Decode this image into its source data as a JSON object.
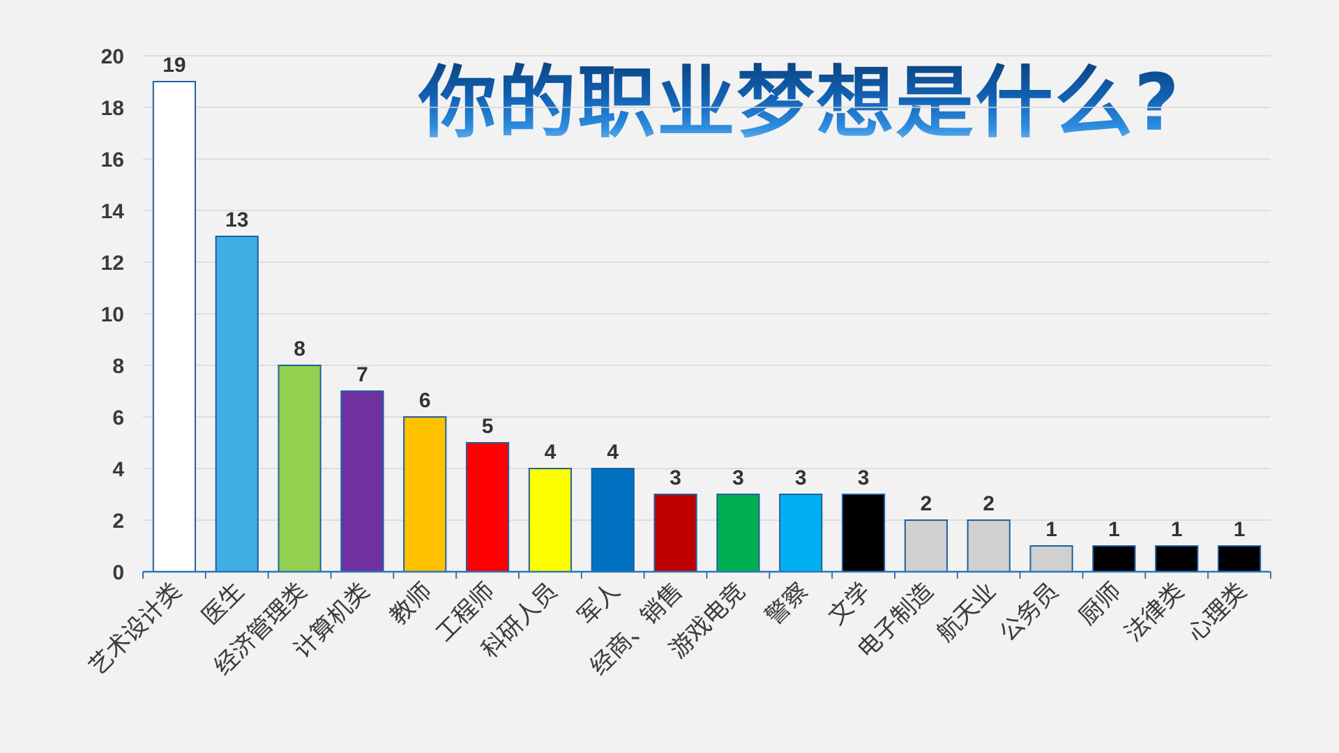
{
  "page": {
    "title": "你的职业梦想是什么?"
  },
  "chart_data": {
    "type": "bar",
    "title": "你的职业梦想是什么?",
    "xlabel": "",
    "ylabel": "",
    "ylim": [
      0,
      20
    ],
    "yticks": [
      0,
      2,
      4,
      6,
      8,
      10,
      12,
      14,
      16,
      18,
      20
    ],
    "grid": "horizontal",
    "data_labels": true,
    "categories": [
      "艺术设计类",
      "医生",
      "经济管理类",
      "计算机类",
      "教师",
      "工程师",
      "科研人员",
      "军人",
      "经商、销售",
      "游戏电竞",
      "警察",
      "文学",
      "电子制造",
      "航天业",
      "公务员",
      "厨师",
      "法律类",
      "心理类"
    ],
    "values": [
      19,
      13,
      8,
      7,
      6,
      5,
      4,
      4,
      3,
      3,
      3,
      3,
      2,
      2,
      1,
      1,
      1,
      1
    ],
    "colors": [
      "#ffffff",
      "#41aee3",
      "#92d050",
      "#7030a0",
      "#ffc000",
      "#ff0000",
      "#ffff00",
      "#0070c0",
      "#c00000",
      "#00b050",
      "#00b0f0",
      "#000000",
      "#d0d0d0",
      "#d0d0d0",
      "#d0d0d0",
      "#000000",
      "#000000",
      "#000000"
    ],
    "bar_outline_color": "#1f5f9e",
    "axis_color": "#2e75b6",
    "grid_color": "#d6d6d6"
  }
}
